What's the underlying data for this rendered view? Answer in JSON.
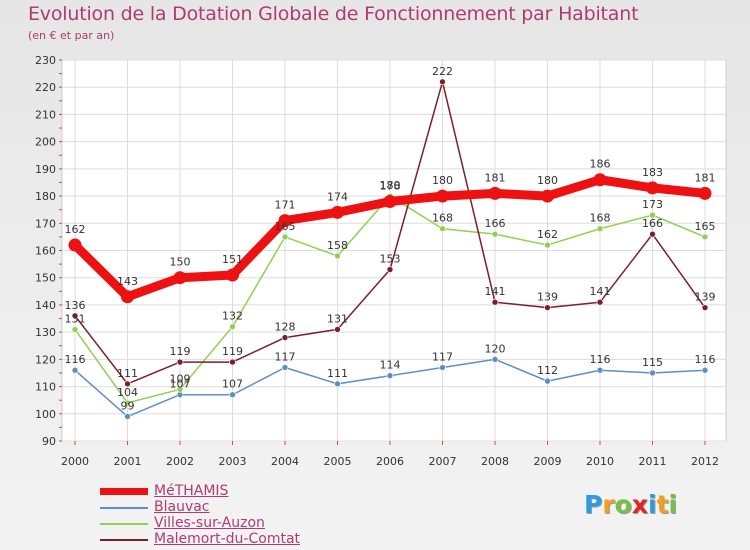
{
  "title": "Evolution de la Dotation Globale de Fonctionnement par Habitant",
  "subtitle": "(en € et par an)",
  "brand": {
    "letters": [
      "P",
      "r",
      "o",
      "x",
      "i",
      "t",
      "i"
    ],
    "colors": [
      "#2e9be0",
      "#f0a020",
      "#76c043",
      "#e02424",
      "#2e9be0",
      "#f0a020",
      "#76c043"
    ]
  },
  "chart_data": {
    "type": "line",
    "title": "Evolution de la Dotation Globale de Fonctionnement par Habitant",
    "subtitle": "(en € et par an)",
    "xlabel": "",
    "ylabel": "",
    "ylim": [
      90,
      230
    ],
    "yticks": [
      90,
      100,
      110,
      120,
      130,
      140,
      150,
      160,
      170,
      180,
      190,
      200,
      210,
      220,
      230
    ],
    "grid": true,
    "legend_position": "bottom-left",
    "x": [
      "2000",
      "2001",
      "2002",
      "2003",
      "2004",
      "2005",
      "2006",
      "2007",
      "2008",
      "2009",
      "2010",
      "2011",
      "2012"
    ],
    "series": [
      {
        "name": "Blauvac",
        "color": "#5b8fc7",
        "values": [
          116,
          99,
          107,
          107,
          117,
          111,
          114,
          117,
          120,
          112,
          116,
          115,
          116
        ],
        "labels": [
          "116",
          "99",
          "107",
          "107",
          "117",
          "111",
          "114",
          "117",
          "120",
          "112",
          "116",
          "115",
          "116"
        ]
      },
      {
        "name": "Villes-sur-Auzon",
        "color": "#8fd150",
        "values": [
          131,
          104,
          109,
          132,
          165,
          158,
          180,
          168,
          166,
          162,
          168,
          173,
          165
        ],
        "labels": [
          "131",
          "104",
          "109",
          "132",
          "165",
          "158",
          "180",
          "168",
          "166",
          "162",
          "168",
          "173",
          "165"
        ]
      },
      {
        "name": "Malemort-du-Comtat",
        "color": "#7a1f2b",
        "values": [
          136,
          111,
          119,
          119,
          128,
          131,
          153,
          222,
          141,
          139,
          141,
          166,
          139
        ],
        "labels": [
          "136",
          "111",
          "119",
          "119",
          "128",
          "131",
          "153",
          "222",
          "141",
          "139",
          "141",
          "166",
          "139"
        ]
      },
      {
        "name": "MéTHAMIS",
        "color": "#ee1111",
        "values": [
          162,
          143,
          150,
          151,
          171,
          174,
          178,
          180,
          181,
          180,
          186,
          183,
          181
        ],
        "labels": [
          "162",
          "143",
          "150",
          "151",
          "171",
          "174",
          "178",
          "180",
          "181",
          "180",
          "186",
          "183",
          "181"
        ]
      }
    ],
    "legend": [
      "MéTHAMIS",
      "Blauvac",
      "Villes-sur-Auzon",
      "Malemort-du-Comtat"
    ]
  }
}
